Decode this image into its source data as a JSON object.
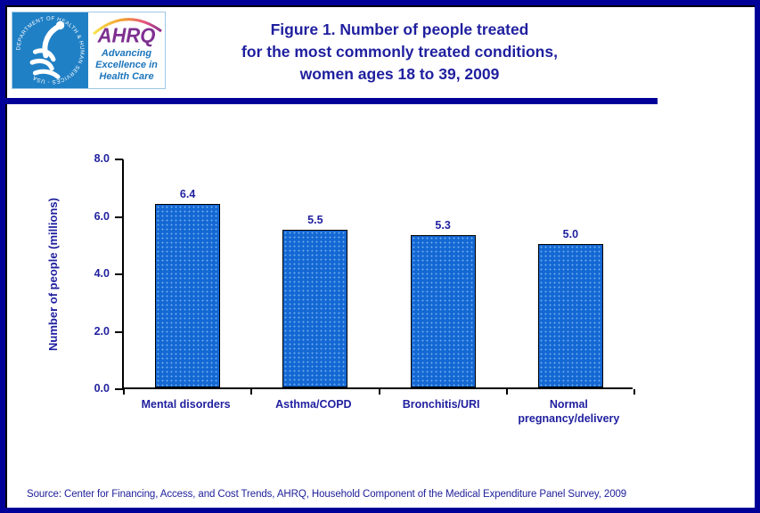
{
  "page": {
    "frame_color": "#000099",
    "background": "#FFFFFF",
    "text_navy": "#1F1F9F"
  },
  "header": {
    "logo": {
      "hhs_circle_text": "DEPARTMENT OF HEALTH & HUMAN SERVICES - USA",
      "hhs_bg_color": "#2080C5",
      "ahrq_word": "AHRQ",
      "ahrq_color": "#7D3090",
      "tagline_line1": "Advancing",
      "tagline_line2": "Excellence in",
      "tagline_line3": "Health Care",
      "tagline_color": "#1B75BC"
    },
    "title_line1": "Figure 1. Number of people treated",
    "title_line2": "for the most commonly treated conditions,",
    "title_line3": "women ages 18 to 39, 2009"
  },
  "chart_data": {
    "type": "bar",
    "title": "Figure 1. Number of people treated for the most commonly treated conditions, women ages 18 to 39, 2009",
    "categories": [
      "Mental disorders",
      "Asthma/COPD",
      "Bronchitis/URI",
      "Normal pregnancy/delivery"
    ],
    "values": [
      6.4,
      5.5,
      5.3,
      5.0
    ],
    "data_labels": [
      "6.4",
      "5.5",
      "5.3",
      "5.0"
    ],
    "xlabel": "",
    "ylabel": "Number of people (millions)",
    "ylim": [
      0,
      8
    ],
    "ytick_step": 2,
    "ytick_labels": [
      "0.0",
      "2.0",
      "4.0",
      "6.0",
      "8.0"
    ],
    "grid": false,
    "legend": "none",
    "bar_color": "#1468D4",
    "bar_border_color": "#000000"
  },
  "footer": {
    "source": "Source: Center for Financing, Access, and Cost Trends, AHRQ,  Household Component of the Medical Expenditure Panel Survey,  2009"
  }
}
